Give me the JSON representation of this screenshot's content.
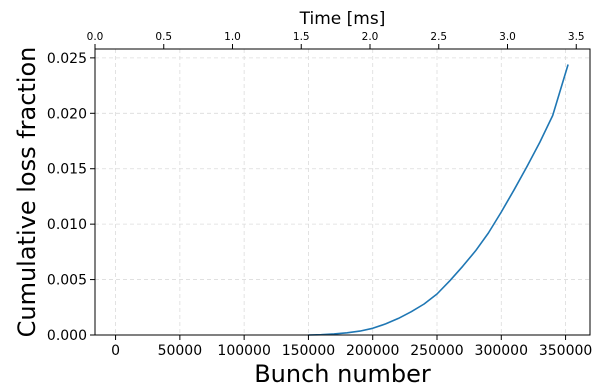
{
  "chart_data": {
    "type": "line",
    "title": "",
    "xlabel": "Bunch number",
    "ylabel": "Cumulative loss fraction",
    "secondary_xlabel": "Time [ms]",
    "xlim": [
      -16000,
      369000
    ],
    "ylim": [
      0.0,
      0.0258
    ],
    "secondary_xlim": [
      0.0,
      3.6
    ],
    "grid": true,
    "x_ticks": [
      0,
      50000,
      100000,
      150000,
      200000,
      250000,
      300000,
      350000
    ],
    "x_tick_labels": [
      "0",
      "50000",
      "100000",
      "150000",
      "200000",
      "250000",
      "300000",
      "350000"
    ],
    "y_ticks": [
      0.0,
      0.005,
      0.01,
      0.015,
      0.02,
      0.025
    ],
    "y_tick_labels": [
      "0.000",
      "0.005",
      "0.010",
      "0.015",
      "0.020",
      "0.025"
    ],
    "secondary_x_ticks": [
      0.0,
      0.5,
      1.0,
      1.5,
      2.0,
      2.5,
      3.0,
      3.5
    ],
    "secondary_x_tick_labels": [
      "0.0",
      "0.5",
      "1.0",
      "1.5",
      "2.0",
      "2.5",
      "3.0",
      "3.5"
    ],
    "series": [
      {
        "color": "#1f77b4",
        "x": [
          150000,
          160000,
          170000,
          180000,
          190000,
          200000,
          210000,
          220000,
          230000,
          240000,
          250000,
          260000,
          270000,
          280000,
          290000,
          300000,
          310000,
          320000,
          330000,
          340000,
          352000
        ],
        "y": [
          0.0,
          3e-05,
          0.0001,
          0.0002,
          0.00035,
          0.0006,
          0.001,
          0.0015,
          0.0021,
          0.0028,
          0.0037,
          0.0049,
          0.0062,
          0.0076,
          0.0092,
          0.0111,
          0.0131,
          0.0152,
          0.0174,
          0.0198,
          0.0244
        ]
      }
    ]
  }
}
